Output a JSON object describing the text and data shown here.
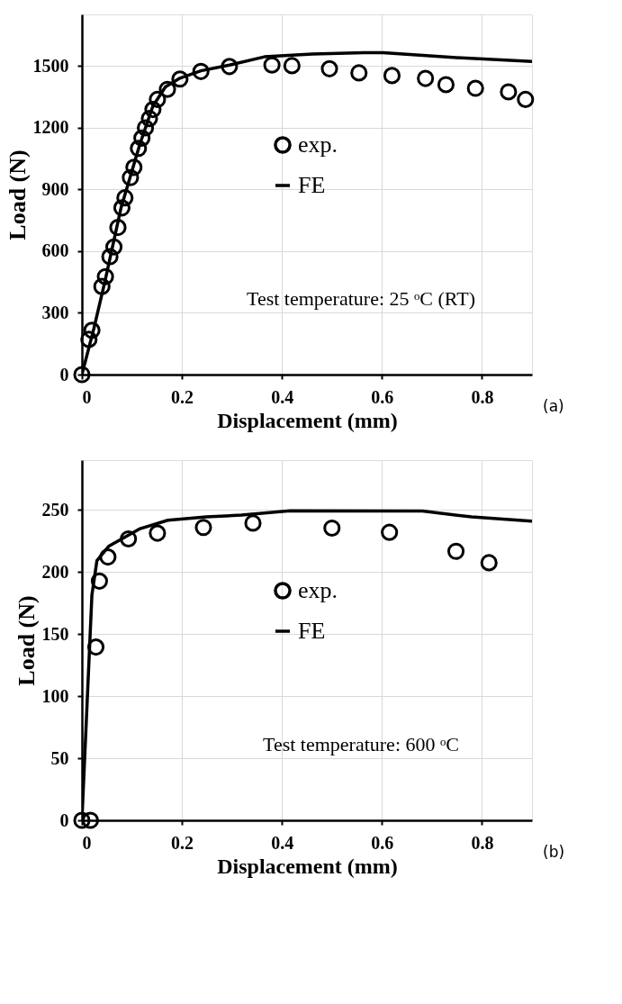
{
  "chart_data": [
    {
      "type": "scatter",
      "xlabel": "Displacement (mm)",
      "ylabel": "Load (N)",
      "xlim": [
        0,
        0.9
      ],
      "ylim": [
        0,
        1750
      ],
      "xticks": [
        0,
        0.2,
        0.4,
        0.6,
        0.8
      ],
      "yticks": [
        0,
        300,
        600,
        900,
        {
          "value": 1200,
          "label": "1200"
        },
        {
          "value": 1500,
          "label": "1500"
        }
      ],
      "grid": true,
      "legend": "center",
      "annotations": [
        "Test temperature: 25 ᵒC (RT)",
        "(a)"
      ],
      "series": [
        {
          "name": "exp.",
          "color": "#000000",
          "marker": "circle",
          "x": [
            0,
            0.014,
            0.02,
            0.04,
            0.047,
            0.056,
            0.064,
            0.072,
            0.08,
            0.086,
            0.097,
            0.104,
            0.113,
            0.12,
            0.127,
            0.135,
            0.142,
            0.151,
            0.171,
            0.196,
            0.238,
            0.295,
            0.38,
            0.42,
            0.495,
            0.554,
            0.62,
            0.687,
            0.728,
            0.787,
            0.853,
            0.887
          ],
          "values": [
            0,
            171,
            215,
            428,
            476,
            573,
            620,
            715,
            810,
            859,
            957,
            1007,
            1099,
            1149,
            1199,
            1244,
            1288,
            1337,
            1386,
            1436,
            1473,
            1497,
            1504,
            1501,
            1486,
            1466,
            1453,
            1439,
            1409,
            1391,
            1374,
            1337
          ]
        },
        {
          "name": "FE",
          "type": "line",
          "color": "#000000",
          "line_style": "solid",
          "x": [
            0,
            0.024,
            0.046,
            0.078,
            0.116,
            0.142,
            0.167,
            0.196,
            0.238,
            0.295,
            0.365,
            0.461,
            0.564,
            0.602,
            0.749,
            0.9
          ],
          "values": [
            0,
            225,
            452,
            808,
            1120,
            1305,
            1398,
            1440,
            1476,
            1504,
            1544,
            1557,
            1564,
            1564,
            1540,
            1521
          ]
        }
      ]
    },
    {
      "type": "scatter",
      "xlabel": "Displacement (mm)",
      "ylabel": "Load (N)",
      "xlim": [
        0,
        0.9
      ],
      "ylim": [
        0,
        290
      ],
      "xticks": [
        0,
        0.2,
        0.4,
        0.6,
        0.8
      ],
      "yticks": [
        0,
        50,
        100,
        150,
        200,
        250
      ],
      "grid": true,
      "legend": "center",
      "annotations": [
        "Test temperature: 600 ᵒC",
        "(b)"
      ],
      "series": [
        {
          "name": "exp.",
          "color": "#000000",
          "marker": "circle",
          "x": [
            0,
            0.017,
            0.028,
            0.035,
            0.052,
            0.093,
            0.151,
            0.243,
            0.342,
            0.5,
            0.615,
            0.748,
            0.814
          ],
          "values": [
            0,
            0,
            139.5,
            192.6,
            212,
            226.6,
            231.2,
            235.8,
            239.3,
            235.3,
            231.9,
            216.6,
            207.4
          ]
        },
        {
          "name": "FE",
          "type": "line",
          "color": "#000000",
          "line_style": "solid",
          "x": [
            0,
            0.02,
            0.03,
            0.054,
            0.115,
            0.172,
            0.249,
            0.319,
            0.416,
            0.681,
            0.779,
            0.899
          ],
          "values": [
            0,
            181.5,
            209,
            220.8,
            234.6,
            241.6,
            244.3,
            245.7,
            249.2,
            249,
            244.3,
            240.9
          ]
        }
      ]
    }
  ]
}
